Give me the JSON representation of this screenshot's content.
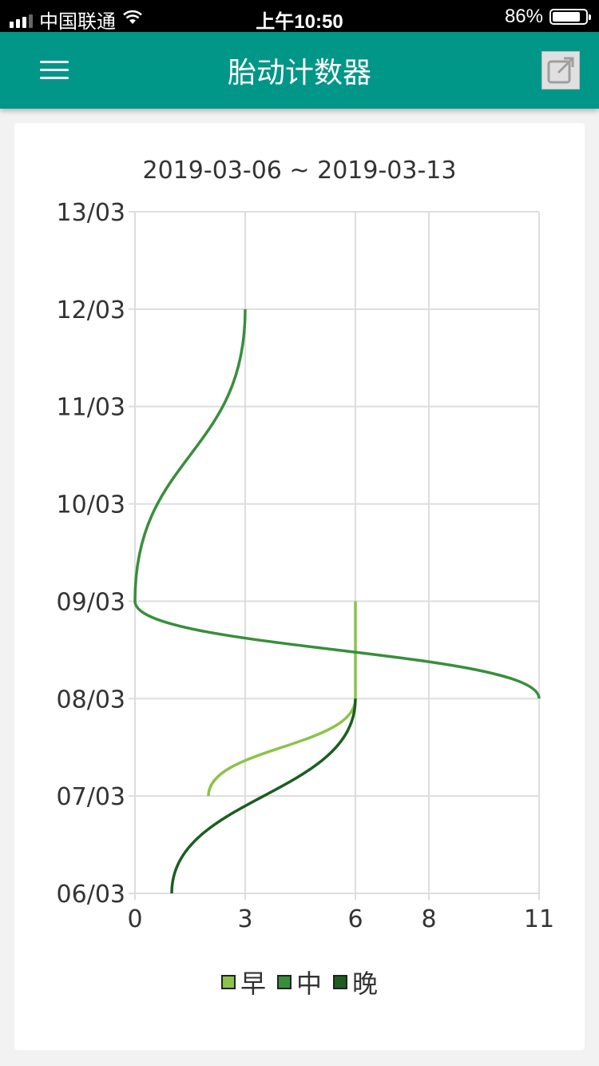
{
  "status_bar": {
    "carrier": "中国联通",
    "time": "上午10:50",
    "battery_percent": "86%",
    "battery_level": 0.86,
    "icons": [
      "signal-icon",
      "wifi-icon",
      "battery-icon"
    ]
  },
  "app_bar": {
    "title": "胎动计数器",
    "menu_icon": "hamburger-menu-icon",
    "action_icon": "share-external-icon",
    "color": "#009688"
  },
  "chart_data": {
    "type": "line",
    "title": "2019-03-06 ~ 2019-03-13",
    "orientation": "horizontal-values",
    "x_ticks": [
      "0",
      "3",
      "6",
      "8",
      "11"
    ],
    "xlim": [
      0,
      11
    ],
    "y_categories": [
      "06/03",
      "07/03",
      "08/03",
      "09/03",
      "10/03",
      "11/03",
      "12/03",
      "13/03"
    ],
    "grid": true,
    "legend_position": "bottom",
    "smooth": true,
    "series": [
      {
        "name": "早",
        "color": "#8bc34a",
        "values": [
          null,
          2,
          6,
          6,
          null,
          null,
          null,
          null
        ]
      },
      {
        "name": "中",
        "color": "#388e3c",
        "values": [
          null,
          null,
          11,
          0,
          null,
          null,
          3,
          null
        ]
      },
      {
        "name": "晚",
        "color": "#1b5e20",
        "values": [
          1,
          null,
          6,
          null,
          null,
          null,
          null,
          null
        ]
      }
    ]
  }
}
